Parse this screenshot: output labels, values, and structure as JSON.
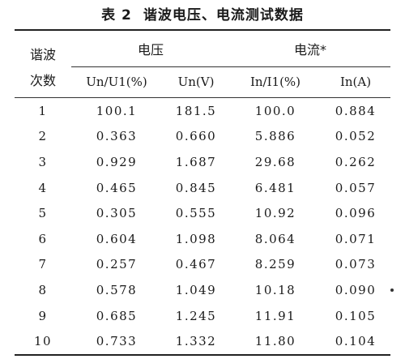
{
  "caption": {
    "number": "表 2",
    "title": "谐波电压、电流测试数据"
  },
  "header": {
    "row_col_top": "谐波",
    "row_col_bottom": "次数",
    "voltage_group": "电压",
    "current_group": "电流*",
    "columns": [
      "Un/U1(%)",
      "Un(V)",
      "In/I1(%)",
      "In(A)"
    ]
  },
  "rows": [
    [
      "1",
      "100.1",
      "181.5",
      "100.0",
      "0.884"
    ],
    [
      "2",
      "0.363",
      "0.660",
      "5.886",
      "0.052"
    ],
    [
      "3",
      "0.929",
      "1.687",
      "29.68",
      "0.262"
    ],
    [
      "4",
      "0.465",
      "0.845",
      "6.481",
      "0.057"
    ],
    [
      "5",
      "0.305",
      "0.555",
      "10.92",
      "0.096"
    ],
    [
      "6",
      "0.604",
      "1.098",
      "8.064",
      "0.071"
    ],
    [
      "7",
      "0.257",
      "0.467",
      "8.259",
      "0.073"
    ],
    [
      "8",
      "0.578",
      "1.049",
      "10.18",
      "0.090"
    ],
    [
      "9",
      "0.685",
      "1.245",
      "11.91",
      "0.105"
    ],
    [
      "10",
      "0.733",
      "1.332",
      "11.80",
      "0.104"
    ]
  ]
}
